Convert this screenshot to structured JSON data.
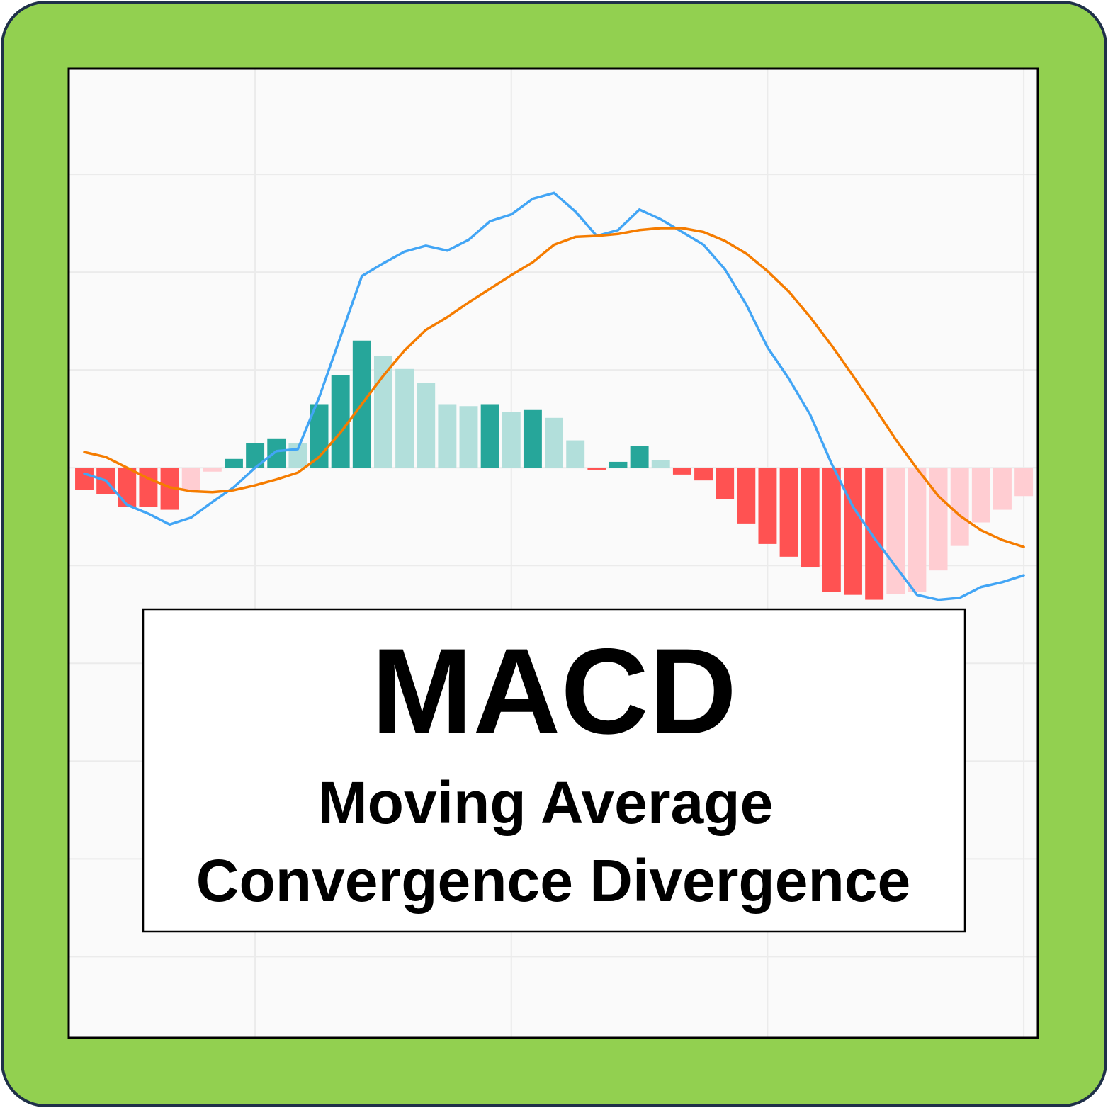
{
  "chart_data": {
    "type": "bar",
    "title": "MACD",
    "subtitle": [
      "Moving Average",
      "Convergence Divergence"
    ],
    "x": [
      0,
      1,
      2,
      3,
      4,
      5,
      6,
      7,
      8,
      9,
      10,
      11,
      12,
      13,
      14,
      15,
      16,
      17,
      18,
      19,
      20,
      21,
      22,
      23,
      24,
      25,
      26,
      27,
      28,
      29,
      30,
      31,
      32,
      33,
      34,
      35,
      36,
      37,
      38,
      39,
      40,
      41,
      42,
      43,
      44
    ],
    "values": [
      -0.23,
      -0.27,
      -0.4,
      -0.4,
      -0.43,
      -0.23,
      -0.04,
      0.09,
      0.25,
      0.3,
      0.25,
      0.65,
      0.95,
      1.3,
      1.14,
      1.01,
      0.87,
      0.65,
      0.63,
      0.65,
      0.57,
      0.59,
      0.51,
      0.28,
      -0.02,
      0.06,
      0.22,
      0.08,
      -0.07,
      -0.13,
      -0.32,
      -0.57,
      -0.78,
      -0.91,
      -1.02,
      -1.27,
      -1.3,
      -1.35,
      -1.29,
      -1.27,
      -1.05,
      -0.8,
      -0.56,
      -0.43,
      -0.29
    ],
    "positive_color": "#26a69a",
    "positive_fading_color": "#b2dfdb",
    "negative_color": "#ff5252",
    "negative_fading_color": "#ffcdd2",
    "series": [
      {
        "type": "line",
        "color": "#42a5f5",
        "values": [
          -0.06,
          -0.13,
          -0.38,
          -0.47,
          -0.58,
          -0.51,
          -0.35,
          -0.2,
          0,
          0.17,
          0.19,
          0.72,
          1.34,
          1.96,
          2.09,
          2.21,
          2.27,
          2.22,
          2.33,
          2.52,
          2.59,
          2.75,
          2.81,
          2.62,
          2.37,
          2.43,
          2.64,
          2.54,
          2.41,
          2.28,
          2.03,
          1.67,
          1.23,
          0.91,
          0.54,
          0.04,
          -0.4,
          -0.72,
          -1.01,
          -1.3,
          -1.35,
          -1.33,
          -1.22,
          -1.17,
          -1.1
        ]
      },
      {
        "type": "line",
        "color": "#f57c00",
        "values": [
          0.16,
          0.11,
          0,
          -0.11,
          -0.2,
          -0.24,
          -0.25,
          -0.23,
          -0.18,
          -0.12,
          -0.05,
          0.11,
          0.36,
          0.65,
          0.94,
          1.2,
          1.41,
          1.54,
          1.69,
          1.83,
          1.97,
          2.1,
          2.28,
          2.36,
          2.37,
          2.39,
          2.43,
          2.45,
          2.45,
          2.41,
          2.32,
          2.19,
          2.01,
          1.8,
          1.54,
          1.25,
          0.94,
          0.62,
          0.29,
          -0.01,
          -0.29,
          -0.49,
          -0.64,
          -0.74,
          -0.81
        ]
      }
    ],
    "xlim": [
      -0.73,
      44.66
    ],
    "ylim": [
      -5.83,
      4.08
    ],
    "xticks": [
      8,
      20,
      32,
      44
    ],
    "yticks": [
      -5,
      -4,
      -3,
      -2,
      -1,
      0,
      1,
      2,
      3
    ],
    "grid": true
  }
}
